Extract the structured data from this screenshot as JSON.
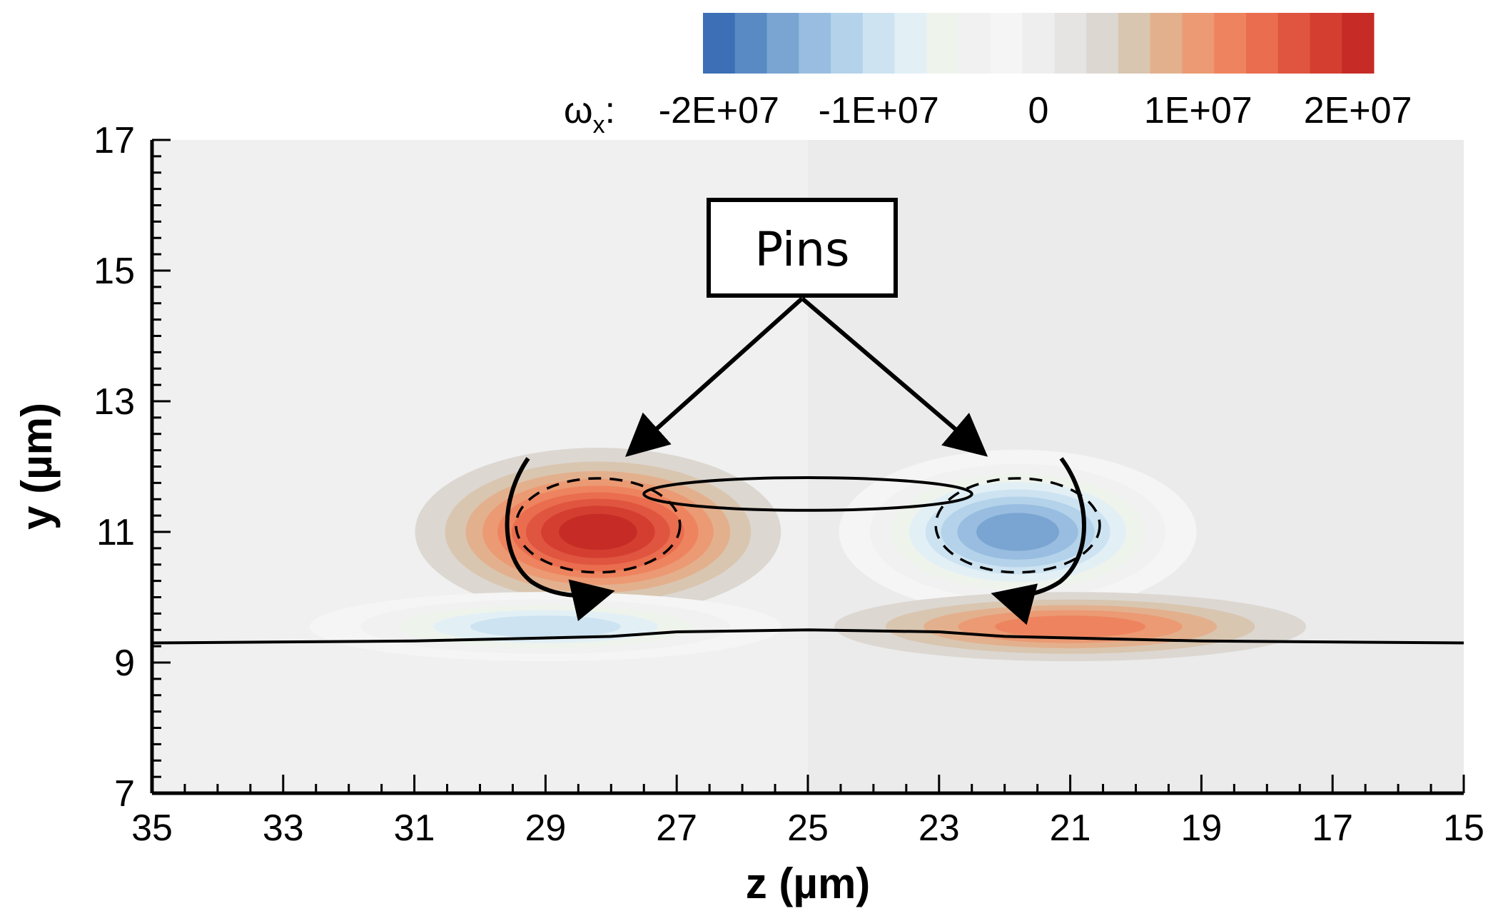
{
  "chart_data": {
    "type": "heatmap",
    "quantity": "ωx",
    "quantity_base": "ω",
    "quantity_sub": "x",
    "xlabel": "z (µm)",
    "ylabel": "y (µm)",
    "xlim": [
      35,
      15
    ],
    "ylim": [
      7,
      17
    ],
    "x_ticks": [
      35,
      33,
      31,
      29,
      27,
      25,
      23,
      21,
      19,
      17,
      15
    ],
    "y_ticks": [
      7,
      9,
      11,
      13,
      15,
      17
    ],
    "colorbar": {
      "ticks": [
        {
          "value": -20000000,
          "label": "-2E+07"
        },
        {
          "value": -10000000,
          "label": "-1E+07"
        },
        {
          "value": 0,
          "label": "0"
        },
        {
          "value": 10000000,
          "label": "1E+07"
        },
        {
          "value": 20000000,
          "label": "2E+07"
        }
      ],
      "range": [
        -21000000,
        21000000
      ],
      "levels": 21,
      "colors": [
        "#3c6fb5",
        "#5a8ac4",
        "#7aa5d2",
        "#98bde0",
        "#b4d2ea",
        "#cde3f1",
        "#e2f0f6",
        "#eef3ec",
        "#f1f1f1",
        "#f5f5f5",
        "#efeeee",
        "#e6e4e2",
        "#dcd7d1",
        "#d9c6b0",
        "#e3b08e",
        "#eb9a73",
        "#ee845f",
        "#e96d4e",
        "#e0553f",
        "#d43e31",
        "#c62c25"
      ]
    },
    "vortices": [
      {
        "z": 28.2,
        "y": 11.0,
        "peak": 20000000,
        "sigma_z": 1.3,
        "sigma_y": 0.6
      },
      {
        "z": 21.8,
        "y": 11.0,
        "peak": -18000000,
        "sigma_z": 1.3,
        "sigma_y": 0.6
      },
      {
        "z": 29.0,
        "y": 9.55,
        "peak": -12000000,
        "sigma_z": 1.9,
        "sigma_y": 0.28
      },
      {
        "z": 21.0,
        "y": 9.55,
        "peak": 12000000,
        "sigma_z": 1.9,
        "sigma_y": 0.28
      }
    ],
    "wall_profile": [
      [
        35,
        9.3
      ],
      [
        31,
        9.33
      ],
      [
        28,
        9.4
      ],
      [
        27,
        9.47
      ],
      [
        25,
        9.5
      ],
      [
        23,
        9.47
      ],
      [
        22,
        9.4
      ],
      [
        19,
        9.33
      ],
      [
        15,
        9.3
      ]
    ],
    "annotations": [
      {
        "type": "callout",
        "text": "Pins",
        "targets": [
          {
            "z": 27.8,
            "y": 12.2
          },
          {
            "z": 22.5,
            "y": 12.2
          }
        ]
      }
    ]
  }
}
